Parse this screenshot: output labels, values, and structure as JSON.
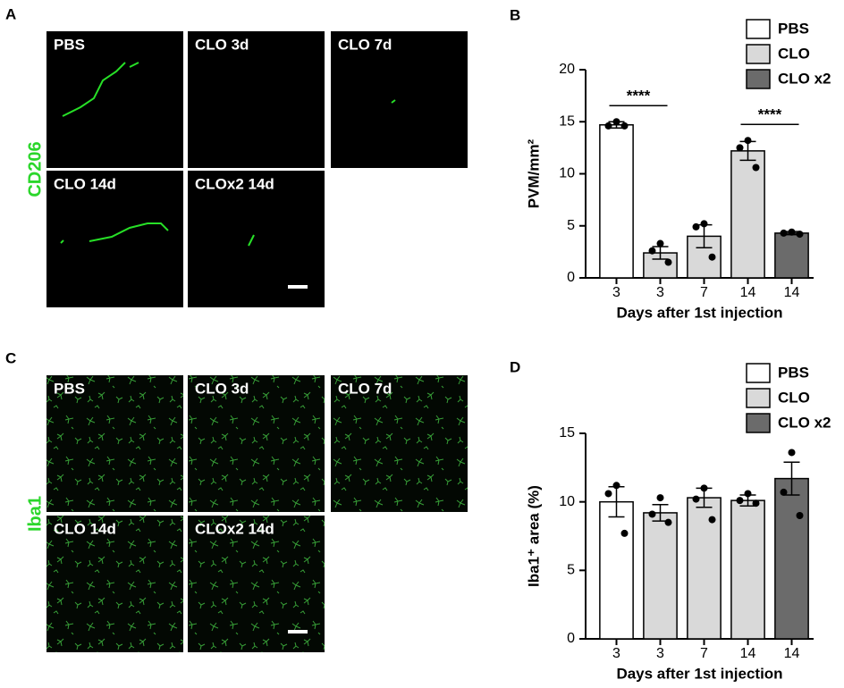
{
  "micrographs": [
    {
      "label": "A",
      "stain": "CD206",
      "images": [
        "PBS",
        "CLO 3d",
        "CLO 7d",
        "CLO 14d",
        "CLOx2 14d"
      ]
    },
    {
      "label": "C",
      "stain": "Iba1",
      "images": [
        "PBS",
        "CLO 3d",
        "CLO 7d",
        "CLO 14d",
        "CLOx2 14d"
      ]
    }
  ],
  "chart_data": [
    {
      "type": "bar",
      "label": "B",
      "y_label": "PVM/mm²",
      "x_label": "Days after 1st injection",
      "categories": [
        "3",
        "3",
        "7",
        "14",
        "14"
      ],
      "values": [
        14.7,
        2.4,
        4.0,
        12.2,
        4.3
      ],
      "errors": [
        0.3,
        0.6,
        1.1,
        0.9,
        0.15
      ],
      "points": [
        [
          15.0,
          14.6,
          14.6
        ],
        [
          3.3,
          2.6,
          1.5
        ],
        [
          5.2,
          4.9,
          2.0
        ],
        [
          13.2,
          12.5,
          10.6
        ],
        [
          4.4,
          4.3,
          4.2
        ]
      ],
      "colors": [
        "#ffffff",
        "#d9d9d9",
        "#d9d9d9",
        "#d9d9d9",
        "#6b6b6b"
      ],
      "legend": [
        {
          "name": "PBS",
          "color": "#ffffff"
        },
        {
          "name": "CLO",
          "color": "#d9d9d9"
        },
        {
          "name": "CLO x2",
          "color": "#6b6b6b"
        }
      ],
      "brackets": [
        {
          "label": "****",
          "categories": [
            0,
            1
          ]
        },
        {
          "label": "****",
          "categories": [
            3,
            4
          ]
        }
      ],
      "ylim": [
        0,
        20
      ],
      "yticks": [
        0,
        5,
        10,
        15,
        20
      ]
    },
    {
      "type": "bar",
      "label": "D",
      "y_label": "Iba1⁺ area (%)",
      "x_label": "Days after 1st injection",
      "categories": [
        "3",
        "3",
        "7",
        "14",
        "14"
      ],
      "values": [
        10.0,
        9.2,
        10.3,
        10.1,
        11.7
      ],
      "errors": [
        1.1,
        0.6,
        0.7,
        0.4,
        1.2
      ],
      "points": [
        [
          11.2,
          10.6,
          7.7
        ],
        [
          10.3,
          9.1,
          8.5
        ],
        [
          11.0,
          10.2,
          8.7
        ],
        [
          10.6,
          10.1,
          9.9
        ],
        [
          13.6,
          10.7,
          9.0
        ]
      ],
      "colors": [
        "#ffffff",
        "#d9d9d9",
        "#d9d9d9",
        "#d9d9d9",
        "#6b6b6b"
      ],
      "legend": [
        {
          "name": "PBS",
          "color": "#ffffff"
        },
        {
          "name": "CLO",
          "color": "#d9d9d9"
        },
        {
          "name": "CLO x2",
          "color": "#6b6b6b"
        }
      ],
      "brackets": [],
      "ylim": [
        0,
        15
      ],
      "yticks": [
        0,
        5,
        10,
        15
      ]
    }
  ]
}
